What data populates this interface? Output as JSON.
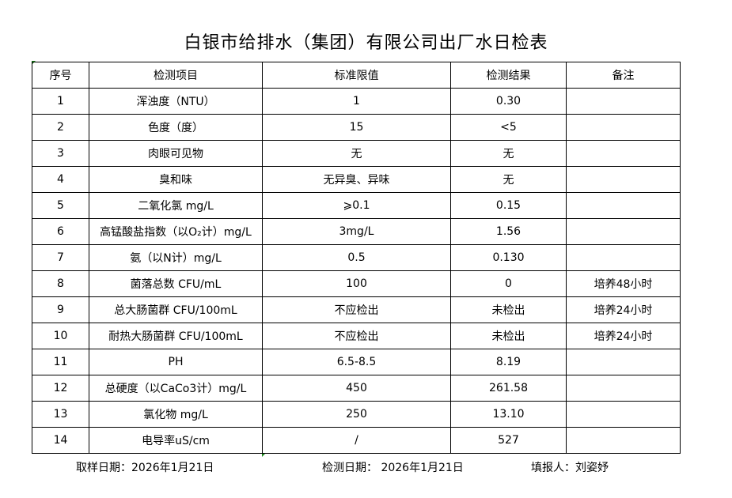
{
  "title": "白银市给排水（集团）有限公司出厂水日检表",
  "headers": [
    "序号",
    "检测项目",
    "标准限值",
    "检测结果",
    "备注"
  ],
  "rows": [
    [
      "1",
      "浑浊度（NTU）",
      "1",
      "0.30",
      ""
    ],
    [
      "2",
      "色度（度）",
      "15",
      "<5",
      ""
    ],
    [
      "3",
      "肉眼可见物",
      "无",
      "无",
      ""
    ],
    [
      "4",
      "臭和味",
      "无异臭、异味",
      "无",
      ""
    ],
    [
      "5",
      "二氧化氯 mg/L",
      "⩾0.1",
      "0.15",
      ""
    ],
    [
      "6",
      "高锰酸盐指数（以O₂计）mg/L",
      "3mg/L",
      "1.56",
      ""
    ],
    [
      "7",
      "氨（以N计）mg/L",
      "0.5",
      "0.130",
      ""
    ],
    [
      "8",
      "菌落总数 CFU/mL",
      "100",
      "0",
      "培养48小时"
    ],
    [
      "9",
      "总大肠菌群 CFU/100mL",
      "不应检出",
      "未检出",
      "培养24小时"
    ],
    [
      "10",
      "耐热大肠菌群 CFU/100mL",
      "不应检出",
      "未检出",
      "培养24小时"
    ],
    [
      "11",
      "PH",
      "6.5-8.5",
      "8.19",
      ""
    ],
    [
      "12",
      "总硬度（以CaCo3计）mg/L",
      "450",
      "261.58",
      ""
    ],
    [
      "13",
      "氯化物 mg/L",
      "250",
      "13.10",
      ""
    ],
    [
      "14",
      "电导率uS/cm",
      "/",
      "527",
      ""
    ]
  ],
  "footer": {
    "sample_date": "取样日期：2026年1月21日",
    "test_date": "检测日期： 2026年1月21日",
    "reporter": "填报人：刘姿妤"
  }
}
